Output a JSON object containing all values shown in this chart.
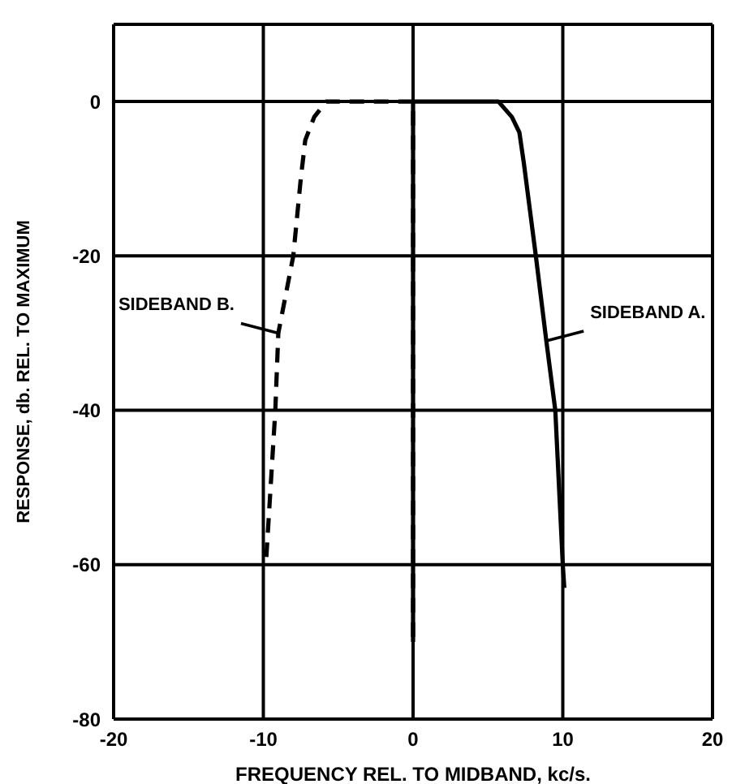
{
  "chart_data": {
    "type": "line",
    "xlabel": "FREQUENCY REL. TO MIDBAND, kc/s.",
    "ylabel": "RESPONSE, db. REL. TO MAXIMUM",
    "xlim": [
      -20,
      20
    ],
    "xticks": [
      -20,
      -10,
      0,
      10,
      20
    ],
    "ylim": [
      -80,
      10
    ],
    "yticks": [
      -80,
      -60,
      -40,
      -20,
      0
    ],
    "grid": true,
    "marker": "none",
    "series": [
      {
        "name": "SIDEBAND A.",
        "color": "#000000",
        "line_style": "solid",
        "x": [
          0,
          0,
          5.7,
          6.6,
          7.1,
          7.4,
          7.8,
          8.2,
          8.9,
          9.5,
          10,
          10.1
        ],
        "values": [
          -70,
          0,
          0,
          -2,
          -4,
          -8,
          -14,
          -20,
          -31,
          -40,
          -60,
          -63
        ]
      },
      {
        "name": "SIDEBAND B.",
        "color": "#000000",
        "line_style": "dashed",
        "x": [
          -9.8,
          -9.2,
          -9,
          -8,
          -7.5,
          -7.2,
          -6.6,
          -5.8,
          0,
          0
        ],
        "values": [
          -59,
          -40,
          -30,
          -20,
          -10,
          -5,
          -2,
          0,
          0,
          -70
        ]
      }
    ]
  }
}
